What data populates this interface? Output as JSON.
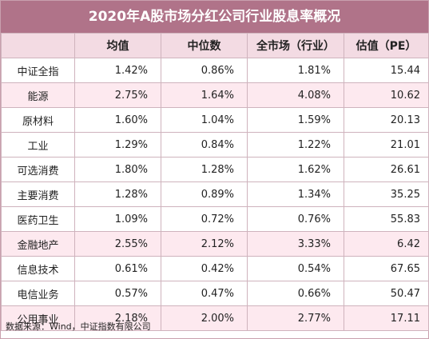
{
  "title": "2020年A股市场分红公司行业股息率概况",
  "headers": [
    "",
    "均值",
    "中位数",
    "全市场（行业）",
    "估值（PE）"
  ],
  "rows": [
    {
      "name": "中证全指",
      "mean": "1.42%",
      "median": "0.86%",
      "market": "1.81%",
      "pe": "15.44",
      "highlight": false
    },
    {
      "name": "能源",
      "mean": "2.75%",
      "median": "1.64%",
      "market": "4.08%",
      "pe": "10.62",
      "highlight": true
    },
    {
      "name": "原材料",
      "mean": "1.60%",
      "median": "1.04%",
      "market": "1.59%",
      "pe": "20.13",
      "highlight": false
    },
    {
      "name": "工业",
      "mean": "1.29%",
      "median": "0.84%",
      "market": "1.22%",
      "pe": "21.01",
      "highlight": false
    },
    {
      "name": "可选消费",
      "mean": "1.80%",
      "median": "1.28%",
      "market": "1.62%",
      "pe": "26.61",
      "highlight": false
    },
    {
      "name": "主要消费",
      "mean": "1.28%",
      "median": "0.89%",
      "market": "1.34%",
      "pe": "35.25",
      "highlight": false
    },
    {
      "name": "医药卫生",
      "mean": "1.09%",
      "median": "0.72%",
      "market": "0.76%",
      "pe": "55.83",
      "highlight": false
    },
    {
      "name": "金融地产",
      "mean": "2.55%",
      "median": "2.12%",
      "market": "3.33%",
      "pe": "6.42",
      "highlight": true
    },
    {
      "name": "信息技术",
      "mean": "0.61%",
      "median": "0.42%",
      "market": "0.54%",
      "pe": "67.65",
      "highlight": false
    },
    {
      "name": "电信业务",
      "mean": "0.57%",
      "median": "0.47%",
      "market": "0.66%",
      "pe": "50.47",
      "highlight": false
    },
    {
      "name": "公用事业",
      "mean": "2.18%",
      "median": "2.00%",
      "market": "2.77%",
      "pe": "17.11",
      "highlight": true
    }
  ],
  "source": "数据来源：Wind，中证指数有限公司",
  "colors": {
    "title_bg": "#b07389",
    "header_bg": "#f3dbe3",
    "highlight_bg": "#fde9ef",
    "border": "#cfb3bd"
  }
}
